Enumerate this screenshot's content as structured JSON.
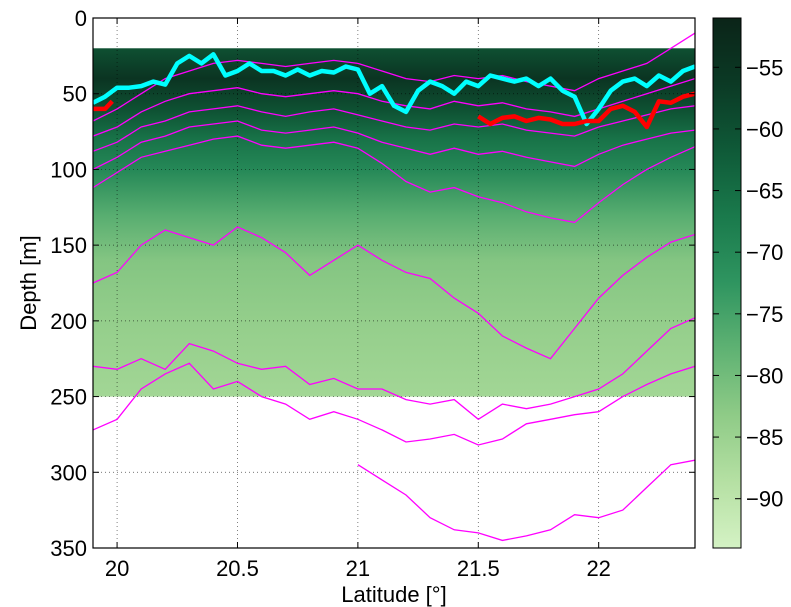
{
  "chart_data": {
    "type": "heatmap",
    "title": "",
    "xlabel": "Latitude [°]",
    "ylabel": "Depth [m]",
    "xlim": [
      19.9,
      22.4
    ],
    "ylim": [
      350,
      0
    ],
    "y_reversed": true,
    "grid": true,
    "x_ticks": [
      20,
      20.5,
      21,
      21.5,
      22
    ],
    "x_tick_labels": [
      "20",
      "20.5",
      "21",
      "21.5",
      "22"
    ],
    "y_ticks": [
      0,
      50,
      100,
      150,
      200,
      250,
      300,
      350
    ],
    "y_tick_labels": [
      "0",
      "50",
      "100",
      "150",
      "200",
      "250",
      "300",
      "350"
    ],
    "heatmap_depth_range": [
      20,
      250
    ],
    "colorbar": {
      "range": [
        -94,
        -51
      ],
      "ticks": [
        -55,
        -60,
        -65,
        -70,
        -75,
        -80,
        -85,
        -90
      ],
      "tick_labels": [
        "−55",
        "−60",
        "−65",
        "−70",
        "−75",
        "−80",
        "−85",
        "−90"
      ],
      "colors": [
        "#d4f2c4",
        "#b5e0a3",
        "#8fcb87",
        "#5fb273",
        "#2f9560",
        "#1a7a4c",
        "#0f5a38",
        "#0b3a25",
        "#0b2418"
      ]
    },
    "intensity_profile": [
      {
        "depth": 20,
        "value": -60
      },
      {
        "depth": 40,
        "value": -55
      },
      {
        "depth": 60,
        "value": -60
      },
      {
        "depth": 80,
        "value": -66
      },
      {
        "depth": 100,
        "value": -70
      },
      {
        "depth": 130,
        "value": -77
      },
      {
        "depth": 160,
        "value": -82
      },
      {
        "depth": 200,
        "value": -84
      },
      {
        "depth": 250,
        "value": -86
      }
    ],
    "series": [
      {
        "color": "#ff00ff",
        "lines": [
          {
            "x": [
              19.9,
              20.0,
              20.1,
              20.2,
              20.3,
              20.4,
              20.5,
              20.6,
              20.7,
              20.8,
              20.9,
              21.0,
              21.1,
              21.2,
              21.3,
              21.4,
              21.5,
              21.6,
              21.7,
              21.8,
              21.9,
              22.0,
              22.1,
              22.2,
              22.3,
              22.4
            ],
            "y": [
              68,
              60,
              50,
              40,
              35,
              30,
              28,
              30,
              32,
              30,
              28,
              30,
              35,
              40,
              42,
              38,
              40,
              38,
              42,
              45,
              48,
              40,
              35,
              30,
              20,
              10
            ]
          },
          {
            "x": [
              19.9,
              20.0,
              20.1,
              20.2,
              20.3,
              20.4,
              20.5,
              20.6,
              20.7,
              20.8,
              20.9,
              21.0,
              21.1,
              21.2,
              21.3,
              21.4,
              21.5,
              21.6,
              21.7,
              21.8,
              21.9,
              22.0,
              22.1,
              22.2,
              22.3,
              22.4
            ],
            "y": [
              78,
              72,
              62,
              55,
              50,
              48,
              46,
              50,
              52,
              50,
              48,
              50,
              55,
              58,
              60,
              55,
              58,
              56,
              60,
              62,
              65,
              60,
              55,
              50,
              45,
              40
            ]
          },
          {
            "x": [
              19.9,
              20.0,
              20.1,
              20.2,
              20.3,
              20.4,
              20.5,
              20.6,
              20.7,
              20.8,
              20.9,
              21.0,
              21.1,
              21.2,
              21.3,
              21.4,
              21.5,
              21.6,
              21.7,
              21.8,
              21.9,
              22.0,
              22.1,
              22.2,
              22.3,
              22.4
            ],
            "y": [
              88,
              82,
              72,
              68,
              62,
              60,
              58,
              62,
              65,
              62,
              60,
              64,
              68,
              72,
              74,
              70,
              72,
              70,
              74,
              76,
              78,
              72,
              68,
              64,
              60,
              58
            ]
          },
          {
            "x": [
              19.9,
              20.0,
              20.1,
              20.2,
              20.3,
              20.4,
              20.5,
              20.6,
              20.7,
              20.8,
              20.9,
              21.0,
              21.1,
              21.2,
              21.3,
              21.4,
              21.5,
              21.6,
              21.7,
              21.8,
              21.9,
              22.0,
              22.1,
              22.2,
              22.3,
              22.4
            ],
            "y": [
              100,
              92,
              82,
              78,
              72,
              70,
              68,
              74,
              76,
              74,
              72,
              76,
              82,
              86,
              90,
              86,
              90,
              88,
              92,
              95,
              98,
              90,
              84,
              80,
              76,
              74
            ]
          },
          {
            "x": [
              19.9,
              20.0,
              20.1,
              20.2,
              20.3,
              20.4,
              20.5,
              20.6,
              20.7,
              20.8,
              20.9,
              21.0,
              21.1,
              21.2,
              21.3,
              21.4,
              21.5,
              21.6,
              21.7,
              21.8,
              21.9,
              22.0,
              22.1,
              22.2,
              22.3,
              22.4
            ],
            "y": [
              112,
              102,
              92,
              88,
              84,
              80,
              78,
              84,
              86,
              84,
              82,
              86,
              96,
              108,
              115,
              112,
              118,
              122,
              128,
              132,
              135,
              122,
              110,
              100,
              92,
              85
            ]
          },
          {
            "x": [
              19.9,
              20.0,
              20.1,
              20.2,
              20.3,
              20.4,
              20.5,
              20.6,
              20.7,
              20.8,
              20.9,
              21.0,
              21.1,
              21.2,
              21.3,
              21.4,
              21.5,
              21.6,
              21.7,
              21.8,
              21.9,
              22.0,
              22.1,
              22.2,
              22.3,
              22.4
            ],
            "y": [
              175,
              168,
              150,
              140,
              145,
              150,
              138,
              145,
              155,
              170,
              160,
              150,
              160,
              168,
              172,
              185,
              195,
              210,
              218,
              225,
              205,
              185,
              170,
              158,
              148,
              143
            ]
          },
          {
            "x": [
              19.9,
              20.0,
              20.1,
              20.2,
              20.3,
              20.4,
              20.5,
              20.6,
              20.7,
              20.8,
              20.9,
              21.0,
              21.1,
              21.2,
              21.3,
              21.4,
              21.5,
              21.6,
              21.7,
              21.8,
              21.9,
              22.0,
              22.1,
              22.2,
              22.3,
              22.4
            ],
            "y": [
              230,
              232,
              225,
              232,
              215,
              220,
              228,
              232,
              230,
              242,
              238,
              245,
              245,
              252,
              255,
              252,
              265,
              255,
              258,
              255,
              250,
              245,
              235,
              220,
              205,
              198
            ]
          },
          {
            "x": [
              19.9,
              20.0,
              20.1,
              20.2,
              20.3,
              20.4,
              20.5,
              20.6,
              20.7,
              20.8,
              20.9,
              21.0,
              21.1,
              21.2,
              21.3,
              21.4,
              21.5,
              21.6,
              21.7,
              21.8,
              21.9,
              22.0,
              22.1,
              22.2,
              22.3,
              22.4
            ],
            "y": [
              272,
              265,
              245,
              235,
              228,
              245,
              240,
              250,
              255,
              265,
              260,
              265,
              272,
              280,
              278,
              275,
              282,
              278,
              268,
              265,
              262,
              260,
              250,
              242,
              235,
              230
            ]
          },
          {
            "x": [
              21.0,
              21.1,
              21.2,
              21.3,
              21.4,
              21.5,
              21.6,
              21.7,
              21.8,
              21.9,
              22.0,
              22.1,
              22.2,
              22.3,
              22.4
            ],
            "y": [
              295,
              305,
              315,
              330,
              338,
              340,
              345,
              342,
              338,
              328,
              330,
              325,
              310,
              295,
              292
            ]
          }
        ]
      },
      {
        "color": "#00ffff",
        "x": [
          19.9,
          19.95,
          20.0,
          20.05,
          20.1,
          20.15,
          20.2,
          20.25,
          20.3,
          20.35,
          20.4,
          20.45,
          20.5,
          20.55,
          20.6,
          20.65,
          20.7,
          20.75,
          20.8,
          20.85,
          20.9,
          20.95,
          21.0,
          21.05,
          21.1,
          21.15,
          21.2,
          21.25,
          21.3,
          21.35,
          21.4,
          21.45,
          21.5,
          21.55,
          21.6,
          21.65,
          21.7,
          21.75,
          21.8,
          21.85,
          21.9,
          21.95,
          22.0,
          22.05,
          22.1,
          22.15,
          22.2,
          22.25,
          22.3,
          22.35,
          22.4
        ],
        "y": [
          56,
          52,
          46,
          46,
          45,
          42,
          44,
          30,
          25,
          30,
          24,
          38,
          35,
          30,
          35,
          35,
          38,
          34,
          38,
          35,
          36,
          32,
          34,
          50,
          45,
          58,
          62,
          48,
          42,
          45,
          50,
          42,
          45,
          38,
          40,
          42,
          40,
          45,
          40,
          48,
          52,
          70,
          60,
          48,
          42,
          40,
          45,
          38,
          42,
          35,
          32
        ]
      },
      {
        "color": "#ff0000",
        "segments": [
          {
            "x": [
              19.9,
              19.95,
              19.98
            ],
            "y": [
              60,
              60,
              55
            ]
          },
          {
            "x": [
              21.5,
              21.55,
              21.6,
              21.65,
              21.7,
              21.75,
              21.8,
              21.85,
              21.9,
              21.95,
              22.0,
              22.05,
              22.1,
              22.15,
              22.2,
              22.25,
              22.3,
              22.35,
              22.4
            ],
            "y": [
              65,
              70,
              66,
              65,
              68,
              66,
              67,
              70,
              70,
              68,
              68,
              60,
              58,
              62,
              72,
              55,
              56,
              52,
              50
            ]
          }
        ]
      }
    ]
  }
}
